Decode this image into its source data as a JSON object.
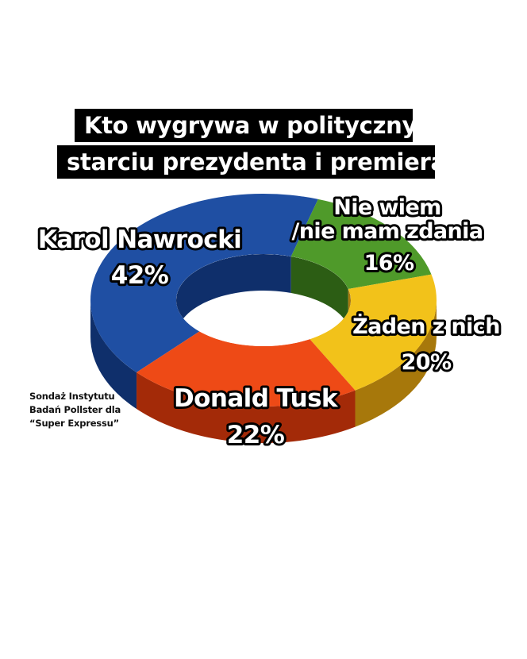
{
  "title_lines": [
    "Kto wygrywa w politycznym",
    "starciu prezydenta i premiera?"
  ],
  "source_lines": [
    "Sondaż Instytutu",
    "Badań Pollster dla",
    "“Super Expressu”"
  ],
  "chart_data": {
    "type": "pie",
    "title": "Kto wygrywa w politycznym starciu prezydenta i premiera?",
    "slices": [
      {
        "name_lines": [
          "Karol Nawrocki"
        ],
        "value": 42,
        "value_label": "42%",
        "color": "#1f4fa3",
        "side_color": "#0f2f6b"
      },
      {
        "name_lines": [
          "Nie wiem",
          "/nie mam zdania"
        ],
        "value": 16,
        "value_label": "16%",
        "color": "#4f9a2a",
        "side_color": "#2c5d14"
      },
      {
        "name_lines": [
          "Żaden z nich"
        ],
        "value": 20,
        "value_label": "20%",
        "color": "#f2c21a",
        "side_color": "#a7780b"
      },
      {
        "name_lines": [
          "Donald Tusk"
        ],
        "value": 22,
        "value_label": "22%",
        "color": "#ee4a16",
        "side_color": "#a32a08"
      }
    ]
  }
}
